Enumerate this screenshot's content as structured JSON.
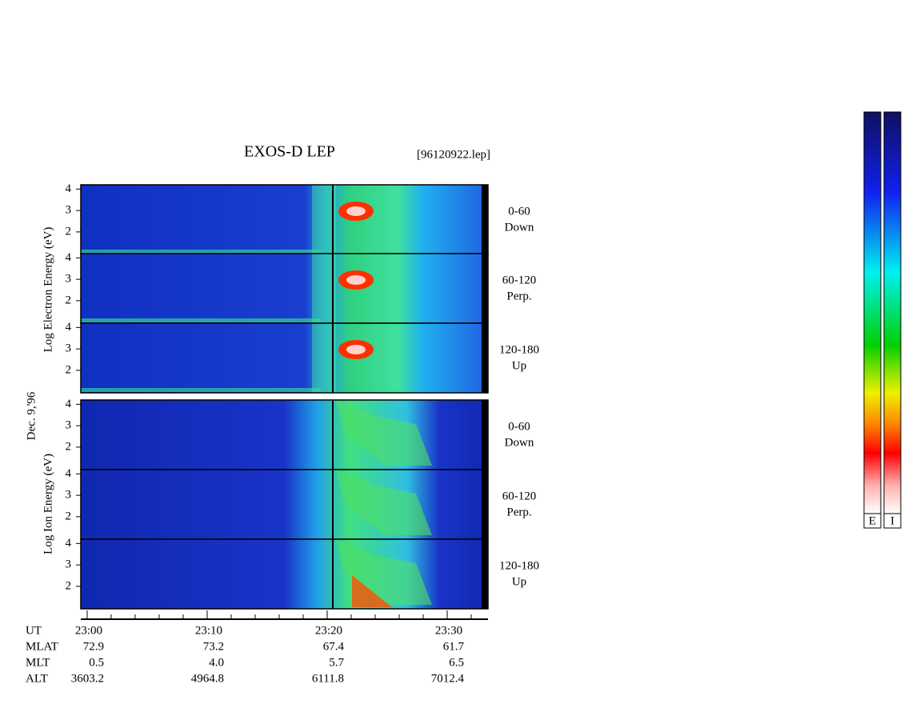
{
  "title": "EXOS-D LEP",
  "file": "[96120922.lep]",
  "date": "Dec. 9,'96",
  "groups": [
    {
      "label": "Log Electron Energy (eV)",
      "panels": [
        {
          "angle": "0-60",
          "dir": "Down"
        },
        {
          "angle": "60-120",
          "dir": "Perp."
        },
        {
          "angle": "120-180",
          "dir": "Up"
        }
      ]
    },
    {
      "label": "Log Ion Energy (eV)",
      "panels": [
        {
          "angle": "0-60",
          "dir": "Down"
        },
        {
          "angle": "60-120",
          "dir": "Perp."
        },
        {
          "angle": "120-180",
          "dir": "Up"
        }
      ]
    }
  ],
  "ylim": [
    0.95,
    4.2
  ],
  "yticks": [
    2,
    3,
    4
  ],
  "xlim": [
    -0.53,
    33.4
  ],
  "xticks": [
    {
      "value": 0,
      "label": "23:00"
    },
    {
      "value": 10,
      "label": "23:10"
    },
    {
      "value": 20,
      "label": "23:20"
    },
    {
      "value": 30,
      "label": "23:30"
    }
  ],
  "xminor": [
    2,
    4,
    6,
    8,
    12,
    14,
    16,
    18,
    22,
    24,
    26,
    28,
    32
  ],
  "time_row": "UT",
  "ephemeris": [
    {
      "name": "MLAT",
      "values": [
        "72.9",
        "73.2",
        "67.4",
        "61.7"
      ]
    },
    {
      "name": "MLT",
      "values": [
        "0.5",
        "4.0",
        "5.7",
        "6.5"
      ]
    },
    {
      "name": "ALT",
      "values": [
        "3603.2",
        "4964.8",
        "6111.8",
        "7012.4"
      ]
    }
  ],
  "colorbars": [
    "E",
    "I"
  ]
}
